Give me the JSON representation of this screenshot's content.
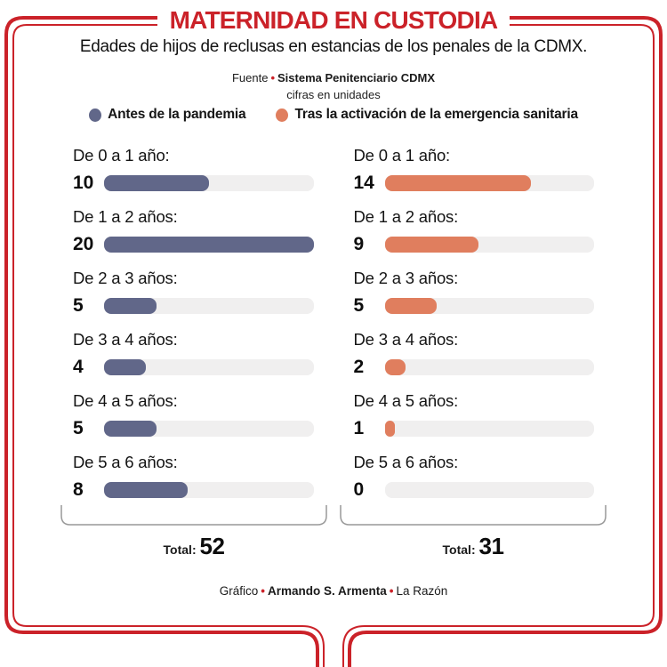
{
  "header": {
    "title": "MATERNIDAD EN CUSTODIA",
    "subtitle": "Edades de hijos de reclusas en estancias de los penales de la CDMX.",
    "source_label": "Fuente",
    "source_name": "Sistema Penitenciario CDMX",
    "units_note": "cifras en unidades",
    "bullet": "•"
  },
  "legend": [
    {
      "label": "Antes de la pandemia",
      "color": "#616789"
    },
    {
      "label": "Tras la activación de la emergencia sanitaria",
      "color": "#e07e5e"
    }
  ],
  "chart_data": {
    "type": "bar",
    "orientation": "horizontal",
    "categories": [
      "De 0 a 1 año:",
      "De 1 a 2 años:",
      "De 2 a 3 años:",
      "De 3 a 4 años:",
      "De 4 a 5 años:",
      "De 5 a 6 años:"
    ],
    "series": [
      {
        "name": "Antes de la pandemia",
        "color": "#616789",
        "values": [
          10,
          20,
          5,
          4,
          5,
          8
        ],
        "total": 52
      },
      {
        "name": "Tras la activación de la emergencia sanitaria",
        "color": "#e07e5e",
        "values": [
          14,
          9,
          5,
          2,
          1,
          0
        ],
        "total": 31
      }
    ],
    "max_value": 20,
    "total_label": "Total:",
    "track_color": "#f0efef",
    "grid": false,
    "legend_position": "top"
  },
  "footer": {
    "credit_label": "Gráfico",
    "credit_name": "Armando S. Armenta",
    "credit_org": "La Razón",
    "bullet": "•"
  },
  "colors": {
    "accent_red": "#cb2229",
    "before_blue": "#616789",
    "after_orange": "#e07e5e",
    "track_gray": "#f0efef",
    "bracket_gray": "#999999"
  }
}
